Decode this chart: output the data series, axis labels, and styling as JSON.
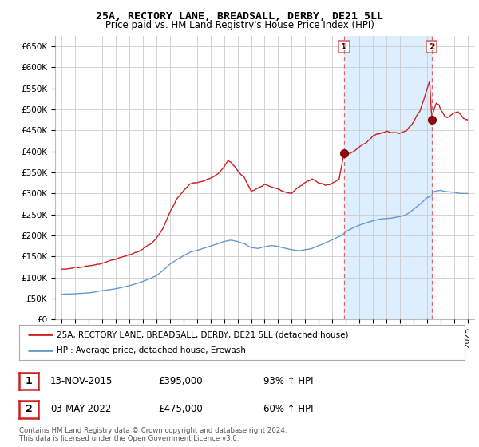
{
  "title": "25A, RECTORY LANE, BREADSALL, DERBY, DE21 5LL",
  "subtitle": "Price paid vs. HM Land Registry's House Price Index (HPI)",
  "ylabel_ticks": [
    "£0",
    "£50K",
    "£100K",
    "£150K",
    "£200K",
    "£250K",
    "£300K",
    "£350K",
    "£400K",
    "£450K",
    "£500K",
    "£550K",
    "£600K",
    "£650K"
  ],
  "ytick_values": [
    0,
    50000,
    100000,
    150000,
    200000,
    250000,
    300000,
    350000,
    400000,
    450000,
    500000,
    550000,
    600000,
    650000
  ],
  "ylim": [
    0,
    675000
  ],
  "xlim_start": 1994.5,
  "xlim_end": 2025.5,
  "purchase1_year": 2015.87,
  "purchase1_price": 395000,
  "purchase2_year": 2022.35,
  "purchase2_price": 475000,
  "red_line_color": "#cc2222",
  "blue_line_color": "#6699cc",
  "vline_color": "#dd6666",
  "shade_color": "#ddeeff",
  "grid_color": "#cccccc",
  "background_color": "#ffffff",
  "legend_label_red": "25A, RECTORY LANE, BREADSALL, DERBY, DE21 5LL (detached house)",
  "legend_label_blue": "HPI: Average price, detached house, Erewash",
  "purchase1_label": "1",
  "purchase2_label": "2",
  "annot1_date": "13-NOV-2015",
  "annot1_price": "£395,000",
  "annot1_pct": "93% ↑ HPI",
  "annot2_date": "03-MAY-2022",
  "annot2_price": "£475,000",
  "annot2_pct": "60% ↑ HPI",
  "footer": "Contains HM Land Registry data © Crown copyright and database right 2024.\nThis data is licensed under the Open Government Licence v3.0.",
  "xtick_years": [
    1995,
    1996,
    1997,
    1998,
    1999,
    2000,
    2001,
    2002,
    2003,
    2004,
    2005,
    2006,
    2007,
    2008,
    2009,
    2010,
    2011,
    2012,
    2013,
    2014,
    2015,
    2016,
    2017,
    2018,
    2019,
    2020,
    2021,
    2022,
    2023,
    2024,
    2025
  ],
  "hpi_breakpoints": [
    [
      1995.0,
      60000
    ],
    [
      1995.5,
      61000
    ],
    [
      1996.0,
      62000
    ],
    [
      1996.5,
      63500
    ],
    [
      1997.0,
      65000
    ],
    [
      1997.5,
      67000
    ],
    [
      1998.0,
      70000
    ],
    [
      1998.5,
      72000
    ],
    [
      1999.0,
      75000
    ],
    [
      1999.5,
      78000
    ],
    [
      2000.0,
      82000
    ],
    [
      2000.5,
      87000
    ],
    [
      2001.0,
      92000
    ],
    [
      2001.5,
      98000
    ],
    [
      2002.0,
      105000
    ],
    [
      2002.5,
      118000
    ],
    [
      2003.0,
      132000
    ],
    [
      2003.5,
      142000
    ],
    [
      2004.0,
      152000
    ],
    [
      2004.5,
      160000
    ],
    [
      2005.0,
      165000
    ],
    [
      2005.5,
      170000
    ],
    [
      2006.0,
      175000
    ],
    [
      2006.5,
      180000
    ],
    [
      2007.0,
      185000
    ],
    [
      2007.5,
      188000
    ],
    [
      2008.0,
      185000
    ],
    [
      2008.5,
      180000
    ],
    [
      2009.0,
      170000
    ],
    [
      2009.5,
      168000
    ],
    [
      2010.0,
      172000
    ],
    [
      2010.5,
      175000
    ],
    [
      2011.0,
      172000
    ],
    [
      2011.5,
      168000
    ],
    [
      2012.0,
      165000
    ],
    [
      2012.5,
      163000
    ],
    [
      2013.0,
      165000
    ],
    [
      2013.5,
      168000
    ],
    [
      2014.0,
      175000
    ],
    [
      2014.5,
      182000
    ],
    [
      2015.0,
      190000
    ],
    [
      2015.5,
      198000
    ],
    [
      2015.87,
      205000
    ],
    [
      2016.0,
      210000
    ],
    [
      2016.5,
      218000
    ],
    [
      2017.0,
      225000
    ],
    [
      2017.5,
      230000
    ],
    [
      2018.0,
      235000
    ],
    [
      2018.5,
      238000
    ],
    [
      2019.0,
      240000
    ],
    [
      2019.5,
      242000
    ],
    [
      2020.0,
      245000
    ],
    [
      2020.5,
      250000
    ],
    [
      2021.0,
      262000
    ],
    [
      2021.5,
      275000
    ],
    [
      2022.0,
      290000
    ],
    [
      2022.35,
      295000
    ],
    [
      2022.5,
      305000
    ],
    [
      2023.0,
      308000
    ],
    [
      2023.5,
      305000
    ],
    [
      2024.0,
      303000
    ],
    [
      2024.5,
      300000
    ],
    [
      2025.0,
      300000
    ]
  ],
  "prop_breakpoints": [
    [
      1995.0,
      120000
    ],
    [
      1995.5,
      122000
    ],
    [
      1996.0,
      123000
    ],
    [
      1996.5,
      125000
    ],
    [
      1997.0,
      128000
    ],
    [
      1997.5,
      130000
    ],
    [
      1998.0,
      133000
    ],
    [
      1998.5,
      135000
    ],
    [
      1999.0,
      138000
    ],
    [
      1999.5,
      142000
    ],
    [
      2000.0,
      148000
    ],
    [
      2000.5,
      155000
    ],
    [
      2001.0,
      162000
    ],
    [
      2001.5,
      172000
    ],
    [
      2002.0,
      190000
    ],
    [
      2002.5,
      215000
    ],
    [
      2003.0,
      250000
    ],
    [
      2003.5,
      280000
    ],
    [
      2004.0,
      300000
    ],
    [
      2004.5,
      315000
    ],
    [
      2005.0,
      320000
    ],
    [
      2005.5,
      325000
    ],
    [
      2006.0,
      330000
    ],
    [
      2006.5,
      340000
    ],
    [
      2007.0,
      355000
    ],
    [
      2007.3,
      370000
    ],
    [
      2007.5,
      365000
    ],
    [
      2008.0,
      345000
    ],
    [
      2008.5,
      330000
    ],
    [
      2009.0,
      295000
    ],
    [
      2009.5,
      305000
    ],
    [
      2010.0,
      315000
    ],
    [
      2010.5,
      310000
    ],
    [
      2011.0,
      305000
    ],
    [
      2011.5,
      295000
    ],
    [
      2012.0,
      295000
    ],
    [
      2012.5,
      310000
    ],
    [
      2013.0,
      320000
    ],
    [
      2013.5,
      330000
    ],
    [
      2014.0,
      320000
    ],
    [
      2014.5,
      315000
    ],
    [
      2015.0,
      320000
    ],
    [
      2015.5,
      330000
    ],
    [
      2015.87,
      395000
    ],
    [
      2016.0,
      390000
    ],
    [
      2016.5,
      400000
    ],
    [
      2017.0,
      410000
    ],
    [
      2017.5,
      420000
    ],
    [
      2018.0,
      435000
    ],
    [
      2018.5,
      440000
    ],
    [
      2019.0,
      445000
    ],
    [
      2019.5,
      440000
    ],
    [
      2020.0,
      438000
    ],
    [
      2020.5,
      445000
    ],
    [
      2021.0,
      465000
    ],
    [
      2021.5,
      490000
    ],
    [
      2021.8,
      520000
    ],
    [
      2022.0,
      540000
    ],
    [
      2022.2,
      560000
    ],
    [
      2022.35,
      475000
    ],
    [
      2022.5,
      490000
    ],
    [
      2022.7,
      510000
    ],
    [
      2022.9,
      505000
    ],
    [
      2023.0,
      495000
    ],
    [
      2023.3,
      480000
    ],
    [
      2023.5,
      475000
    ],
    [
      2023.7,
      480000
    ],
    [
      2024.0,
      488000
    ],
    [
      2024.3,
      492000
    ],
    [
      2024.5,
      485000
    ],
    [
      2024.7,
      478000
    ],
    [
      2025.0,
      475000
    ]
  ]
}
